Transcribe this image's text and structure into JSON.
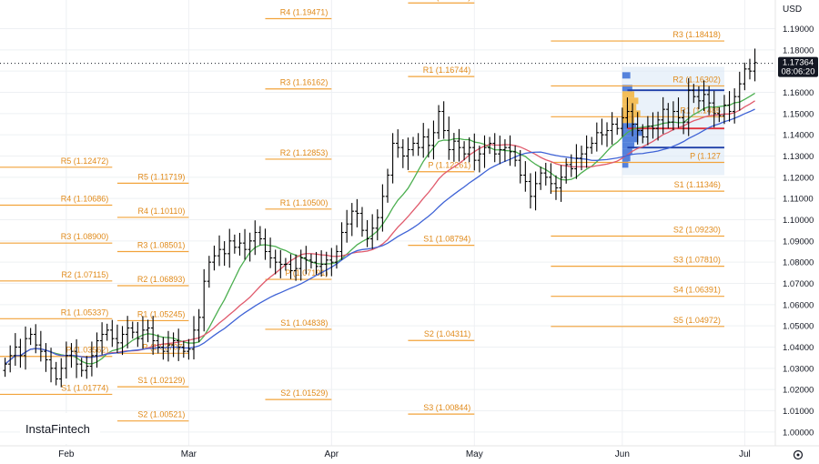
{
  "app": {
    "brand": "InstaFintech",
    "currency": "USD",
    "settings_icon": "gear-icon"
  },
  "colors": {
    "pivot": "#f2a33a",
    "pivot_text": "#e08a1a",
    "candle": "#000000",
    "ma_fast": "#4caf50",
    "ma_mid": "#e05a6c",
    "ma_slow": "#3f63d6",
    "vp_blue": "#3b6fd6",
    "vp_orange": "#f5b53b",
    "vp_box": "#dceaf7",
    "price_badge": "#131722"
  },
  "chart_data": {
    "type": "candlestick",
    "title": "",
    "xlabel": "",
    "ylabel": "",
    "ylim": [
      0.9935,
      1.2035
    ],
    "x_range": [
      0,
      152
    ],
    "grid": true,
    "y_ticks": [
      "1.19000",
      "1.18000",
      "1.17000",
      "1.16000",
      "1.15000",
      "1.14000",
      "1.13000",
      "1.12000",
      "1.11000",
      "1.10000",
      "1.09000",
      "1.08000",
      "1.07000",
      "1.06000",
      "1.05000",
      "1.04000",
      "1.03000",
      "1.02000",
      "1.01000",
      "1.00000"
    ],
    "y_tick_values": [
      1.19,
      1.18,
      1.17,
      1.16,
      1.15,
      1.14,
      1.13,
      1.12,
      1.11,
      1.1,
      1.09,
      1.08,
      1.07,
      1.06,
      1.05,
      1.04,
      1.03,
      1.02,
      1.01,
      1.0
    ],
    "x_ticks": [
      {
        "label": "Feb",
        "x": 13
      },
      {
        "label": "Mar",
        "x": 37
      },
      {
        "label": "Apr",
        "x": 65
      },
      {
        "label": "May",
        "x": 93
      },
      {
        "label": "Jun",
        "x": 122
      },
      {
        "label": "Jul",
        "x": 146
      }
    ],
    "current_price": {
      "value": 1.17364,
      "label": "1.17364",
      "countdown": "08:06:20"
    },
    "closes": [
      1.032,
      1.036,
      1.04,
      1.036,
      1.044,
      1.046,
      1.041,
      1.038,
      1.034,
      1.03,
      1.025,
      1.03,
      1.036,
      1.038,
      1.032,
      1.029,
      1.031,
      1.036,
      1.043,
      1.046,
      1.048,
      1.044,
      1.042,
      1.046,
      1.049,
      1.047,
      1.044,
      1.048,
      1.049,
      1.043,
      1.04,
      1.038,
      1.041,
      1.043,
      1.04,
      1.038,
      1.039,
      1.048,
      1.054,
      1.071,
      1.08,
      1.083,
      1.086,
      1.084,
      1.09,
      1.087,
      1.089,
      1.086,
      1.09,
      1.094,
      1.091,
      1.085,
      1.082,
      1.08,
      1.079,
      1.079,
      1.076,
      1.077,
      1.082,
      1.081,
      1.08,
      1.078,
      1.079,
      1.081,
      1.08,
      1.085,
      1.094,
      1.098,
      1.104,
      1.103,
      1.095,
      1.091,
      1.096,
      1.101,
      1.111,
      1.121,
      1.136,
      1.134,
      1.13,
      1.133,
      1.136,
      1.134,
      1.139,
      1.135,
      1.141,
      1.151,
      1.142,
      1.133,
      1.137,
      1.134,
      1.131,
      1.134,
      1.128,
      1.131,
      1.134,
      1.136,
      1.131,
      1.133,
      1.134,
      1.132,
      1.128,
      1.121,
      1.118,
      1.111,
      1.117,
      1.122,
      1.12,
      1.117,
      1.115,
      1.12,
      1.126,
      1.124,
      1.129,
      1.131,
      1.134,
      1.136,
      1.141,
      1.14,
      1.142,
      1.145,
      1.143,
      1.148,
      1.151,
      1.145,
      1.142,
      1.139,
      1.144,
      1.143,
      1.147,
      1.152,
      1.146,
      1.151,
      1.148,
      1.146,
      1.161,
      1.158,
      1.156,
      1.159,
      1.155,
      1.15,
      1.149,
      1.154,
      1.151,
      1.158,
      1.164,
      1.171,
      1.17,
      1.174
    ],
    "series": [
      {
        "name": "",
        "color": "#4caf50",
        "period": 10
      },
      {
        "name": "",
        "color": "#e05a6c",
        "period": 20
      },
      {
        "name": "",
        "color": "#3f63d6",
        "period": 30
      }
    ],
    "pivot_levels": [
      {
        "label": "R5 (1.12472)",
        "value": 1.12472,
        "x0": 0,
        "x1": 22
      },
      {
        "label": "R4 (1.10686)",
        "value": 1.10686,
        "x0": 0,
        "x1": 22
      },
      {
        "label": "R3 (1.08900)",
        "value": 1.089,
        "x0": 0,
        "x1": 22
      },
      {
        "label": "R2 (1.07115)",
        "value": 1.07115,
        "x0": 0,
        "x1": 22
      },
      {
        "label": "R1 (1.05337)",
        "value": 1.05337,
        "x0": 0,
        "x1": 22
      },
      {
        "label": "P (1.03562)",
        "value": 1.03562,
        "x0": 0,
        "x1": 22
      },
      {
        "label": "S1 (1.01774)",
        "value": 1.01774,
        "x0": 0,
        "x1": 22
      },
      {
        "label": "R5 (1.11719)",
        "value": 1.11719,
        "x0": 23,
        "x1": 37
      },
      {
        "label": "R4 (1.10110)",
        "value": 1.1011,
        "x0": 23,
        "x1": 37
      },
      {
        "label": "R3 (1.08501)",
        "value": 1.08501,
        "x0": 23,
        "x1": 37
      },
      {
        "label": "R2 (1.06893)",
        "value": 1.06893,
        "x0": 23,
        "x1": 37
      },
      {
        "label": "R1 (1.05245)",
        "value": 1.05245,
        "x0": 23,
        "x1": 37
      },
      {
        "label": "P (1.03707)",
        "value": 1.03707,
        "x0": 23,
        "x1": 37
      },
      {
        "label": "S1 (1.02129)",
        "value": 1.02129,
        "x0": 23,
        "x1": 37
      },
      {
        "label": "S2 (1.00521)",
        "value": 1.00521,
        "x0": 23,
        "x1": 37
      },
      {
        "label": "R4 (1.19471)",
        "value": 1.19471,
        "x0": 52,
        "x1": 65
      },
      {
        "label": "R3 (1.16162)",
        "value": 1.16162,
        "x0": 52,
        "x1": 65
      },
      {
        "label": "R2 (1.12853)",
        "value": 1.12853,
        "x0": 52,
        "x1": 65
      },
      {
        "label": "R1 (1.10500)",
        "value": 1.105,
        "x0": 52,
        "x1": 65
      },
      {
        "label": "P (1.07191)",
        "value": 1.07191,
        "x0": 52,
        "x1": 65
      },
      {
        "label": "S1 (1.04838)",
        "value": 1.04838,
        "x0": 52,
        "x1": 65
      },
      {
        "label": "S2 (1.01529)",
        "value": 1.01529,
        "x0": 52,
        "x1": 65
      },
      {
        "label": "R2 (1.20211)",
        "value": 1.20211,
        "x0": 80,
        "x1": 93
      },
      {
        "label": "R1 (1.16744)",
        "value": 1.16744,
        "x0": 80,
        "x1": 93
      },
      {
        "label": "P (1.12261)",
        "value": 1.12261,
        "x0": 80,
        "x1": 93
      },
      {
        "label": "S1 (1.08794)",
        "value": 1.08794,
        "x0": 80,
        "x1": 93
      },
      {
        "label": "S2 (1.04311)",
        "value": 1.04311,
        "x0": 80,
        "x1": 93
      },
      {
        "label": "S3 (1.00844)",
        "value": 1.00844,
        "x0": 80,
        "x1": 93
      },
      {
        "label": "R3 (1.18418)",
        "value": 1.18418,
        "x0": 108,
        "x1": 142
      },
      {
        "label": "R2 (1.16302)",
        "value": 1.16302,
        "x0": 108,
        "x1": 142
      },
      {
        "label": "R1 (1.1485",
        "value": 1.1485,
        "x0": 108,
        "x1": 142
      },
      {
        "label": "P (1.127",
        "value": 1.127,
        "x0": 108,
        "x1": 142
      },
      {
        "label": "S1 (1.11346)",
        "value": 1.11346,
        "x0": 108,
        "x1": 142
      },
      {
        "label": "S2 (1.09230)",
        "value": 1.0923,
        "x0": 108,
        "x1": 142
      },
      {
        "label": "S3 (1.07810)",
        "value": 1.0781,
        "x0": 108,
        "x1": 142
      },
      {
        "label": "S4 (1.06391)",
        "value": 1.06391,
        "x0": 108,
        "x1": 142
      },
      {
        "label": "S5 (1.04972)",
        "value": 1.04972,
        "x0": 108,
        "x1": 142
      }
    ]
  }
}
